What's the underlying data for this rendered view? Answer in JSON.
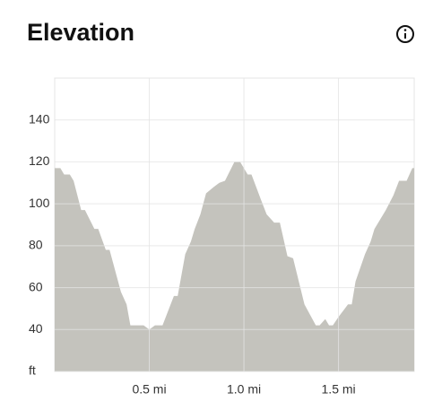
{
  "chart_data": {
    "type": "area",
    "title": "Elevation",
    "color": "#c4c3bd",
    "x": [
      0,
      0.03,
      0.05,
      0.08,
      0.1,
      0.14,
      0.16,
      0.21,
      0.23,
      0.27,
      0.29,
      0.35,
      0.38,
      0.4,
      0.47,
      0.5,
      0.53,
      0.57,
      0.6,
      0.63,
      0.65,
      0.69,
      0.72,
      0.74,
      0.77,
      0.8,
      0.84,
      0.87,
      0.9,
      0.95,
      0.98,
      1.02,
      1.04,
      1.09,
      1.12,
      1.16,
      1.19,
      1.23,
      1.26,
      1.32,
      1.38,
      1.4,
      1.43,
      1.45,
      1.47,
      1.5,
      1.55,
      1.57,
      1.59,
      1.64,
      1.67,
      1.69,
      1.75,
      1.79,
      1.82,
      1.86,
      1.89,
      1.9
    ],
    "values": [
      117,
      117,
      114,
      114,
      111,
      97,
      97,
      88,
      88,
      78,
      78,
      58,
      52,
      42,
      42,
      40,
      42,
      42,
      49,
      56,
      56,
      76,
      82,
      88,
      95,
      105,
      108,
      110,
      111,
      120,
      120,
      114,
      114,
      102,
      95,
      91,
      91,
      75,
      74,
      52,
      42,
      42,
      45,
      42,
      42,
      46,
      52,
      52,
      63,
      76,
      82,
      88,
      97,
      104,
      111,
      111,
      117,
      117
    ],
    "xlim": [
      0,
      1.9
    ],
    "ylim": [
      20,
      160
    ],
    "xticks": [
      {
        "value": 0.5,
        "label": "0.5 mi"
      },
      {
        "value": 1.0,
        "label": "1.0 mi"
      },
      {
        "value": 1.5,
        "label": "1.5 mi"
      }
    ],
    "yticks": [
      {
        "value": 20,
        "label": "ft"
      },
      40,
      60,
      80,
      100,
      120,
      140
    ],
    "grid": true
  }
}
